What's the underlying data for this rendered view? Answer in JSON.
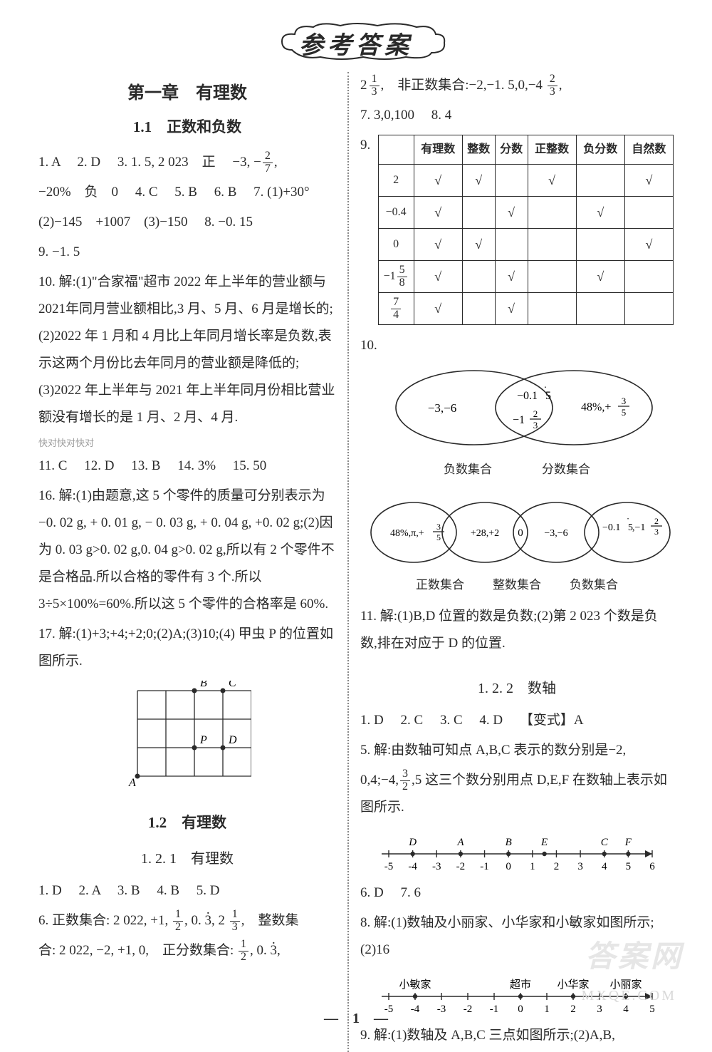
{
  "banner": "参考答案",
  "left": {
    "chapter": "第一章　有理数",
    "section1_1": "1.1　正数和负数",
    "q1": "1. A",
    "q2": "2. D",
    "q3_a": "3. 1. 5, 2 023　正",
    "q3_b": "−3, −",
    "q3_frac": {
      "n": "2",
      "d": "7"
    },
    "line2a": "−20%　负　0",
    "q4": "4. C",
    "q5": "5. B",
    "q6": "6. B",
    "q7a": "7. (1)+30°",
    "line3": "(2)−145　+1007　(3)−150",
    "q8": "8. −0. 15",
    "q9": "9. −1. 5",
    "q10": "10. 解:(1)\"合家福\"超市 2022 年上半年的营业额与2021年同月营业额相比,3 月、5 月、6 月是增长的;(2)2022 年 1 月和 4 月比上年同月增长率是负数,表示这两个月份比去年同月的营业额是降低的;(3)2022 年上半年与 2021 年上半年同月份相比营业额没有增长的是 1 月、2 月、4 月.",
    "noisy": "快对快对快对",
    "q11": "11. C",
    "q12": "12. D",
    "q13": "13. B",
    "q14": "14. 3%",
    "q15": "15. 50",
    "q16": "16. 解:(1)由题意,这 5 个零件的质量可分别表示为 −0. 02 g, + 0. 01 g, − 0. 03 g, + 0. 04 g, +0. 02 g;(2)因为 0. 03 g>0. 02 g,0. 04 g>0. 02 g,所以有 2 个零件不是合格品.所以合格的零件有 3 个.所以 3÷5×100%=60%.所以这 5 个零件的合格率是 60%.",
    "q17": "17. 解:(1)+3;+4;+2;0;(2)A;(3)10;(4) 甲虫 P 的位置如图所示.",
    "grid": {
      "labels": [
        "A",
        "B",
        "C",
        "P",
        "D"
      ],
      "rows": 3,
      "cols": 4,
      "cell": 40,
      "positions": {
        "A": [
          0,
          3
        ],
        "B": [
          2,
          0
        ],
        "C": [
          3,
          0
        ],
        "P": [
          2,
          2
        ],
        "D": [
          3,
          2
        ]
      },
      "stroke": "#2a2a2a"
    },
    "section1_2": "1.2　有理数",
    "section1_2_1": "1. 2. 1　有理数",
    "s121_q1": "1. D",
    "s121_q2": "2. A",
    "s121_q3": "3. B",
    "s121_q4": "4. B",
    "s121_q5": "5. D",
    "s121_q6a": "6. 正数集合: 2 022, +1,",
    "s121_q6a_frac": {
      "n": "1",
      "d": "2"
    },
    "s121_q6a_mid": ", 0. ",
    "s121_q6a_dot": "3",
    "s121_q6a_mix": ", 2",
    "s121_q6a_mixfrac": {
      "n": "1",
      "d": "3"
    },
    "s121_q6a_end": ",　整数集",
    "s121_q6b": "合: 2 022, −2, +1, 0,　正分数集合:",
    "s121_q6b_frac": {
      "n": "1",
      "d": "2"
    },
    "s121_q6b_mid": ", 0. ",
    "s121_q6b_dot": "3",
    "s121_q6b_end": ","
  },
  "right": {
    "topline_a": "2",
    "topline_frac": {
      "n": "1",
      "d": "3"
    },
    "topline_b": ",　非正数集合:−2,−1. 5,0,−4",
    "topline_frac2": {
      "n": "2",
      "d": "3"
    },
    "topline_c": ",",
    "q7": "7. 3,0,100",
    "q8": "8. 4",
    "q9_label": "9.",
    "table": {
      "headers": [
        "",
        "有理数",
        "整数",
        "分数",
        "正整数",
        "负分数",
        "自然数"
      ],
      "rows": [
        {
          "label": "2",
          "cells": [
            1,
            1,
            0,
            1,
            0,
            1
          ]
        },
        {
          "label": "−0.4",
          "cells": [
            1,
            0,
            1,
            0,
            1,
            0
          ]
        },
        {
          "label": "0",
          "cells": [
            1,
            1,
            0,
            0,
            0,
            1
          ]
        },
        {
          "label_mixed": {
            "neg": "−1",
            "n": "5",
            "d": "8"
          },
          "cells": [
            1,
            0,
            1,
            0,
            1,
            0
          ]
        },
        {
          "label_frac": {
            "n": "7",
            "d": "4"
          },
          "cells": [
            1,
            0,
            1,
            0,
            0,
            0
          ]
        }
      ],
      "check": "√"
    },
    "q10_label": "10.",
    "venn2": {
      "left_label": "负数集合",
      "right_label": "分数集合",
      "left_items": "−3,−6",
      "mid_items_a": "−0.1",
      "mid_items_a_dot": "5",
      "mid_items_b": "−1",
      "mid_items_b_frac": {
        "n": "2",
        "d": "3"
      },
      "right_items_a": "48%,+",
      "right_items_a_frac": {
        "n": "3",
        "d": "5"
      },
      "stroke": "#2a2a2a"
    },
    "venn3": {
      "labels": [
        "正数集合",
        "整数集合",
        "负数集合"
      ],
      "c1": "48%,π,+",
      "c1_frac": {
        "n": "3",
        "d": "5"
      },
      "c2": "+28,+2",
      "mid": "0",
      "c3": "−3,−6",
      "c4a": "−0.1",
      "c4a_dot": "5",
      "c4b": ",−1",
      "c4b_frac": {
        "n": "2",
        "d": "3"
      },
      "stroke": "#2a2a2a"
    },
    "q11": "11. 解:(1)B,D 位置的数是负数;(2)第 2 023 个数是负数,排在对应于 D 的位置.",
    "section1_2_2": "1. 2. 2　数轴",
    "s122_q1": "1. D",
    "s122_q2": "2. C",
    "s122_q3": "3. C",
    "s122_q4": "4. D",
    "s122_var": "【变式】A",
    "s122_q5a": "5. 解:由数轴可知点 A,B,C 表示的数分别是−2,",
    "s122_q5b": "0,4;−4,",
    "s122_q5b_frac": {
      "n": "3",
      "d": "2"
    },
    "s122_q5c": ",5 这三个数分别用点 D,E,F 在数轴上表示如图所示.",
    "numline1": {
      "min": -5,
      "max": 6,
      "ticks": [
        -5,
        -4,
        -3,
        -2,
        -1,
        0,
        1,
        2,
        3,
        4,
        5,
        6
      ],
      "points": [
        {
          "label": "D",
          "x": -4
        },
        {
          "label": "A",
          "x": -2
        },
        {
          "label": "B",
          "x": 0
        },
        {
          "label": "E",
          "x": 1.5
        },
        {
          "label": "C",
          "x": 4
        },
        {
          "label": "F",
          "x": 5
        }
      ],
      "stroke": "#2a2a2a"
    },
    "s122_q6": "6. D",
    "s122_q7": "7. 6",
    "s122_q8": "8. 解:(1)数轴及小丽家、小华家和小敏家如图所示;(2)16",
    "numline2": {
      "min": -5,
      "max": 5,
      "ticks": [
        -5,
        -4,
        -3,
        -2,
        -1,
        0,
        1,
        2,
        3,
        4,
        5
      ],
      "points": [
        {
          "label": "小敏家",
          "x": -4
        },
        {
          "label": "超市",
          "x": 0
        },
        {
          "label": "小华家",
          "x": 2
        },
        {
          "label": "小丽家",
          "x": 4
        }
      ],
      "stroke": "#2a2a2a"
    },
    "s122_q9": "9. 解:(1)数轴及 A,B,C 三点如图所示;(2)A,B,"
  },
  "watermark_main": "答案网",
  "watermark_sub": "MXQE.COM",
  "pagenum": "—　1　—"
}
